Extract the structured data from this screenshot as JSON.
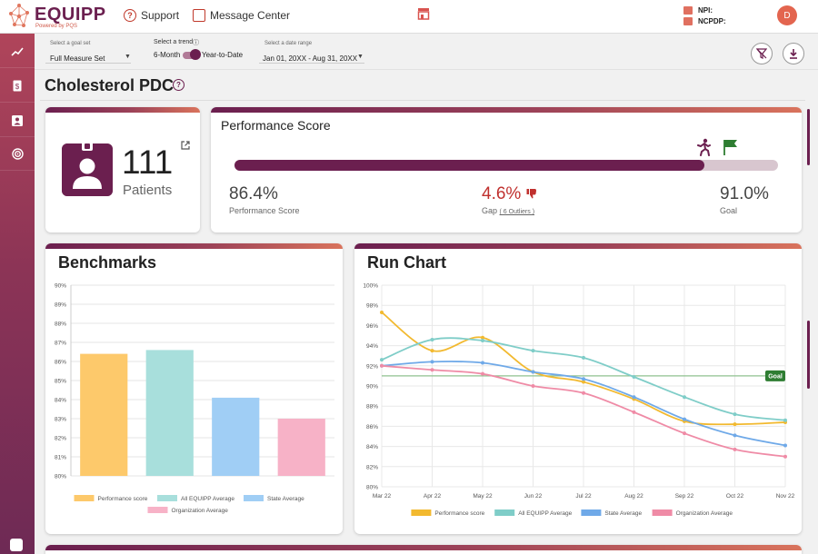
{
  "header": {
    "logo_text": "EQUIPP",
    "logo_sub": "Powered by PQS",
    "support_label": "Support",
    "message_center_label": "Message Center",
    "npi_label": "NPI:",
    "ncpdp_label": "NCPDP:",
    "avatar_initial": "D"
  },
  "filters": {
    "goal_set_label": "Select a goal set",
    "goal_set_value": "Full Measure Set",
    "trend_label": "Select a trend",
    "trend_left": "6-Month",
    "trend_right": "Year-to-Date",
    "date_range_label": "Select a date range",
    "date_range_value": "Jan 01, 20XX - Aug 31, 20XX"
  },
  "page": {
    "title": "Cholesterol PDC"
  },
  "patients": {
    "count": "111",
    "label": "Patients"
  },
  "performance": {
    "title": "Performance Score",
    "score": "86.4%",
    "score_label": "Performance Score",
    "gap": "4.6%",
    "gap_label": "Gap",
    "outliers": "( 6 Outliers )",
    "goal": "91.0%",
    "goal_label": "Goal",
    "progress_fraction": 0.864
  },
  "benchmarks": {
    "title": "Benchmarks",
    "chart_data": {
      "type": "bar",
      "categories": [
        "Performance score",
        "All EQUIPP Average",
        "State Average",
        "Organization Average"
      ],
      "values": [
        86.4,
        86.6,
        84.1,
        83.0
      ],
      "colors": [
        "#fdc96b",
        "#a8dfdc",
        "#a0cef5",
        "#f7b2c7"
      ],
      "ylim": [
        80,
        90
      ],
      "yticks": [
        "80%",
        "81%",
        "82%",
        "83%",
        "84%",
        "85%",
        "86%",
        "87%",
        "88%",
        "89%",
        "90%"
      ],
      "legend": [
        "Performance score",
        "All EQUIPP Average",
        "State Average",
        "Organization Average"
      ],
      "legend_position": "bottom"
    }
  },
  "run_chart": {
    "title": "Run Chart",
    "goal_label": "Goal",
    "chart_data": {
      "type": "line",
      "x": [
        "Mar 22",
        "Apr 22",
        "May 22",
        "Jun 22",
        "Jul 22",
        "Aug 22",
        "Sep 22",
        "Oct 22",
        "Nov 22"
      ],
      "ylim": [
        80,
        100
      ],
      "yticks": [
        "80%",
        "82%",
        "84%",
        "86%",
        "88%",
        "90%",
        "92%",
        "94%",
        "96%",
        "98%",
        "100%"
      ],
      "goal": 91.0,
      "series": [
        {
          "name": "Performance score",
          "color": "#f2b92f",
          "values": [
            97.3,
            93.5,
            94.8,
            91.4,
            90.4,
            88.7,
            86.5,
            86.2,
            86.4
          ]
        },
        {
          "name": "All EQUIPP Average",
          "color": "#7fcdc8",
          "values": [
            92.6,
            94.6,
            94.5,
            93.5,
            92.8,
            90.9,
            88.9,
            87.2,
            86.6
          ]
        },
        {
          "name": "State Average",
          "color": "#6fa9e8",
          "values": [
            92.0,
            92.4,
            92.3,
            91.4,
            90.7,
            88.9,
            86.7,
            85.1,
            84.1
          ]
        },
        {
          "name": "Organization Average",
          "color": "#ef8ba6",
          "values": [
            92.0,
            91.6,
            91.2,
            90.0,
            89.3,
            87.4,
            85.3,
            83.7,
            83.0
          ]
        }
      ],
      "legend_position": "bottom"
    }
  }
}
